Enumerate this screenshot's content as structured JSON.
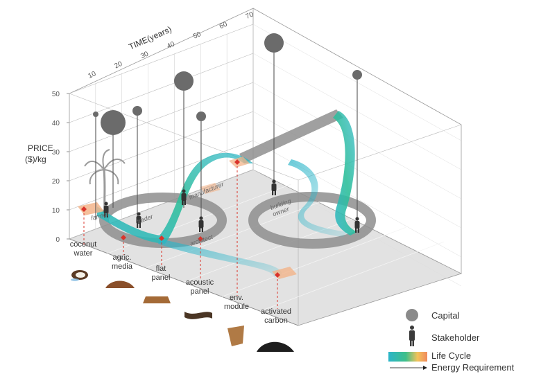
{
  "chart_data": {
    "type": "3d-flow",
    "title": "",
    "ylabel_line1": "PRICE",
    "ylabel_line2": "($)/kg",
    "xlabel": "TIME(years)",
    "time_ticks": [
      "10",
      "20",
      "30",
      "40",
      "50",
      "60",
      "70"
    ],
    "price_ticks": [
      "0",
      "10",
      "20",
      "30",
      "40",
      "50"
    ],
    "ylim": [
      0,
      50
    ],
    "xlim": [
      0,
      70
    ],
    "stakeholders": [
      {
        "label": "farmer"
      },
      {
        "label": "trader"
      },
      {
        "label": "manufacturer"
      },
      {
        "label": "architect"
      },
      {
        "label": "building owner"
      }
    ],
    "products": [
      {
        "line1": "coconut",
        "line2": "water"
      },
      {
        "line1": "agric.",
        "line2": "media"
      },
      {
        "line1": "flat",
        "line2": "panel"
      },
      {
        "line1": "acoustic",
        "line2": "panel"
      },
      {
        "line1": "env.",
        "line2": "module"
      },
      {
        "line1": "activated",
        "line2": "carbon"
      }
    ],
    "legend": {
      "capital": "Capital",
      "stakeholder": "Stakeholder",
      "life_cycle": "Life Cycle",
      "energy": "Energy Requirement"
    },
    "colors": {
      "lifecycle_start": "#2bb5c9",
      "lifecycle_mid": "#3fbf8a",
      "lifecycle_warm": "#f3c35a",
      "lifecycle_end": "#f08a5d",
      "capital": "#6b6b6b",
      "energy_path": "#8a8a8a",
      "marker": "#d9342b"
    }
  }
}
